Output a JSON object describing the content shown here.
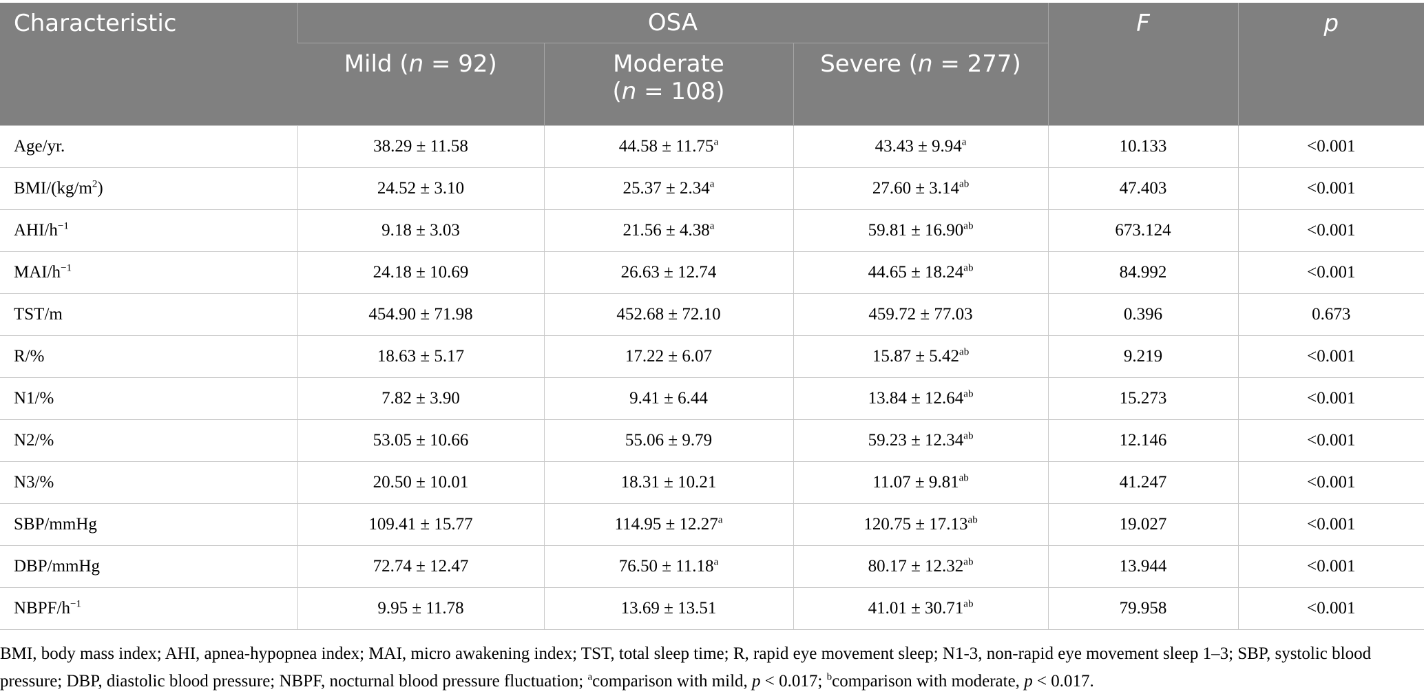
{
  "header": {
    "characteristic": "Characteristic",
    "group": "OSA",
    "f": "F",
    "p": "p",
    "mild": {
      "pre": "Mild (",
      "n": "n",
      "post": " = 92)"
    },
    "moderate": {
      "pre": "Moderate",
      "paren": "(",
      "n": "n",
      "post": " = 108)"
    },
    "severe": {
      "pre": "Severe (",
      "n": "n",
      "post": " = 277)"
    }
  },
  "rows": [
    {
      "label": "Age/yr.",
      "mild": "38.29 ± 11.58",
      "moderate": "44.58 ± 11.75",
      "moderate_sup": "a",
      "severe": "43.43 ± 9.94",
      "severe_sup": "a",
      "f": "10.133",
      "p": "<0.001"
    },
    {
      "label": "BMI/(kg/m",
      "label_sup": "2",
      "label_tail": ")",
      "mild": "24.52 ± 3.10",
      "moderate": "25.37 ± 2.34",
      "moderate_sup": "a",
      "severe": "27.60 ± 3.14",
      "severe_sup": "ab",
      "f": "47.403",
      "p": "<0.001"
    },
    {
      "label": "AHI/h",
      "label_sup": "−1",
      "mild": "9.18 ± 3.03",
      "moderate": "21.56 ± 4.38",
      "moderate_sup": "a",
      "severe": "59.81 ± 16.90",
      "severe_sup": "ab",
      "f": "673.124",
      "p": "<0.001"
    },
    {
      "label": "MAI/h",
      "label_sup": "−1",
      "mild": "24.18 ± 10.69",
      "moderate": "26.63 ± 12.74",
      "severe": "44.65 ± 18.24",
      "severe_sup": "ab",
      "f": "84.992",
      "p": "<0.001"
    },
    {
      "label": "TST/m",
      "mild": "454.90 ± 71.98",
      "moderate": "452.68 ± 72.10",
      "severe": "459.72 ± 77.03",
      "f": "0.396",
      "p": "0.673"
    },
    {
      "label": "R/%",
      "mild": "18.63 ± 5.17",
      "moderate": "17.22 ± 6.07",
      "severe": "15.87 ± 5.42",
      "severe_sup": "ab",
      "f": "9.219",
      "p": "<0.001"
    },
    {
      "label": "N1/%",
      "mild": "7.82 ± 3.90",
      "moderate": "9.41 ± 6.44",
      "severe": "13.84 ± 12.64",
      "severe_sup": "ab",
      "f": "15.273",
      "p": "<0.001"
    },
    {
      "label": "N2/%",
      "mild": "53.05 ± 10.66",
      "moderate": "55.06 ± 9.79",
      "severe": "59.23 ± 12.34",
      "severe_sup": "ab",
      "f": "12.146",
      "p": "<0.001"
    },
    {
      "label": "N3/%",
      "mild": "20.50 ± 10.01",
      "moderate": "18.31 ± 10.21",
      "severe": "11.07 ± 9.81",
      "severe_sup": "ab",
      "f": "41.247",
      "p": "<0.001"
    },
    {
      "label": "SBP/mmHg",
      "mild": "109.41 ± 15.77",
      "moderate": "114.95 ± 12.27",
      "moderate_sup": "a",
      "severe": "120.75 ± 17.13",
      "severe_sup": "ab",
      "f": "19.027",
      "p": "<0.001"
    },
    {
      "label": "DBP/mmHg",
      "mild": "72.74 ± 12.47",
      "moderate": "76.50 ± 11.18",
      "moderate_sup": "a",
      "severe": "80.17 ± 12.32",
      "severe_sup": "ab",
      "f": "13.944",
      "p": "<0.001"
    },
    {
      "label": "NBPF/h",
      "label_sup": "−1",
      "mild": "9.95 ± 11.78",
      "moderate": "13.69 ± 13.51",
      "severe": "41.01 ± 30.71",
      "severe_sup": "ab",
      "f": "79.958",
      "p": "<0.001"
    }
  ],
  "footnote": {
    "text1": "BMI, body mass index; AHI, apnea-hypopnea index; MAI, micro awakening index; TST, total sleep time; R, rapid eye movement sleep; N1-3, non-rapid eye movement sleep 1–3; SBP, systolic blood pressure; DBP, diastolic blood pressure; NBPF, nocturnal blood pressure fluctuation; ",
    "sup_a": "a",
    "text2": "comparison with mild, ",
    "p1": "p",
    "text3": " < 0.017; ",
    "sup_b": "b",
    "text4": "comparison with moderate, ",
    "p2": "p",
    "text5": " < 0.017."
  }
}
